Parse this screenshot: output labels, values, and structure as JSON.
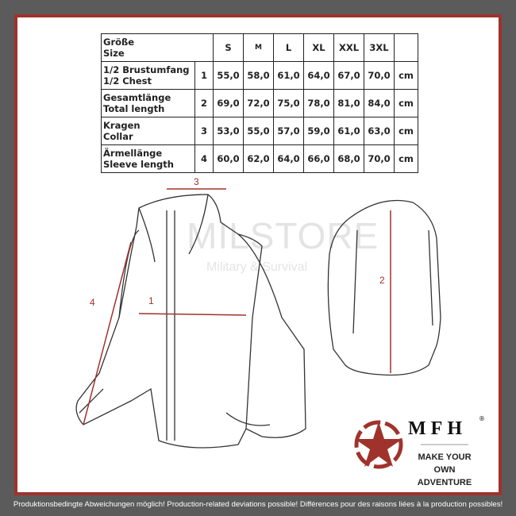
{
  "table": {
    "header": {
      "label": "Größe\nSize",
      "sizes": [
        "S",
        "M",
        "L",
        "XL",
        "XXL",
        "3XL"
      ]
    },
    "rows": [
      {
        "label_de": "1/2 Brustumfang",
        "label_en": "1/2 Chest",
        "num": "1",
        "values": [
          "55,0",
          "58,0",
          "61,0",
          "64,0",
          "67,0",
          "70,0"
        ],
        "unit": "cm"
      },
      {
        "label_de": "Gesamtlänge",
        "label_en": "Total length",
        "num": "2",
        "values": [
          "69,0",
          "72,0",
          "75,0",
          "78,0",
          "81,0",
          "84,0"
        ],
        "unit": "cm"
      },
      {
        "label_de": "Kragen",
        "label_en": "Collar",
        "num": "3",
        "values": [
          "53,0",
          "55,0",
          "57,0",
          "59,0",
          "61,0",
          "63,0"
        ],
        "unit": "cm"
      },
      {
        "label_de": "Ärmellänge",
        "label_en": "Sleeve length",
        "num": "4",
        "values": [
          "60,0",
          "62,0",
          "64,0",
          "66,0",
          "68,0",
          "70,0"
        ],
        "unit": "cm"
      }
    ]
  },
  "dimensions": {
    "d1": "1",
    "d2": "2",
    "d3": "3",
    "d4": "4"
  },
  "watermark": {
    "brand": "MILSTORE",
    "tagline": "Military & Survival"
  },
  "logo": {
    "brand": "MFH",
    "registered": "®",
    "slogan_1": "MAKE YOUR OWN",
    "slogan_2": "ADVENTURE"
  },
  "colors": {
    "accent": "#a0322c",
    "border": "#5b5b5b"
  },
  "footer": "Produktionsbedingte Abweichungen möglich! Production-related deviations possible! Différences pour des raisons liées à la production possibles!"
}
